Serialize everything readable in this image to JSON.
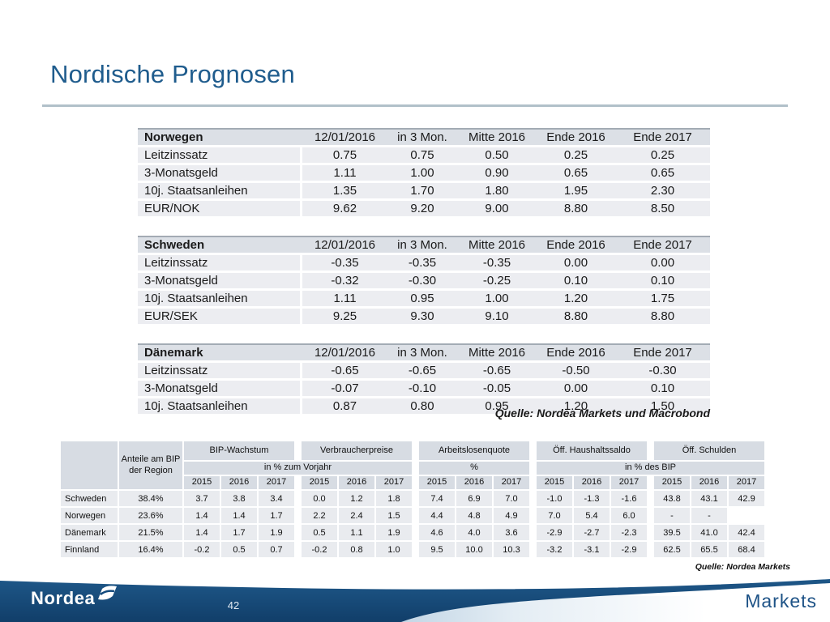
{
  "slide": {
    "title": "Nordische Prognosen",
    "source_top": "Quelle: Nordea Markets und Macrobond",
    "source_bottom": "Quelle: Nordea Markets",
    "page_number": "42",
    "footer_brand": "Nordea",
    "footer_right": "Markets"
  },
  "forecast_tables": [
    {
      "title": "Norwegen",
      "columns": [
        "12/01/2016",
        "in 3 Mon.",
        "Mitte 2016",
        "Ende 2016",
        "Ende 2017"
      ],
      "rows": [
        {
          "label": "Leitzinssatz",
          "values": [
            "0.75",
            "0.75",
            "0.50",
            "0.25",
            "0.25"
          ]
        },
        {
          "label": "3-Monatsgeld",
          "values": [
            "1.11",
            "1.00",
            "0.90",
            "0.65",
            "0.65"
          ]
        },
        {
          "label": "10j. Staatsanleihen",
          "values": [
            "1.35",
            "1.70",
            "1.80",
            "1.95",
            "2.30"
          ]
        },
        {
          "label": "EUR/NOK",
          "values": [
            "9.62",
            "9.20",
            "9.00",
            "8.80",
            "8.50"
          ]
        }
      ]
    },
    {
      "title": "Schweden",
      "columns": [
        "12/01/2016",
        "in 3 Mon.",
        "Mitte 2016",
        "Ende 2016",
        "Ende 2017"
      ],
      "rows": [
        {
          "label": "Leitzinssatz",
          "values": [
            "-0.35",
            "-0.35",
            "-0.35",
            "0.00",
            "0.00"
          ]
        },
        {
          "label": "3-Monatsgeld",
          "values": [
            "-0.32",
            "-0.30",
            "-0.25",
            "0.10",
            "0.10"
          ]
        },
        {
          "label": "10j. Staatsanleihen",
          "values": [
            "1.11",
            "0.95",
            "1.00",
            "1.20",
            "1.75"
          ]
        },
        {
          "label": "EUR/SEK",
          "values": [
            "9.25",
            "9.30",
            "9.10",
            "8.80",
            "8.80"
          ]
        }
      ]
    },
    {
      "title": "Dänemark",
      "columns": [
        "12/01/2016",
        "in 3 Mon.",
        "Mitte 2016",
        "Ende 2016",
        "Ende 2017"
      ],
      "rows": [
        {
          "label": "Leitzinssatz",
          "values": [
            "-0.65",
            "-0.65",
            "-0.65",
            "-0.50",
            "-0.30"
          ]
        },
        {
          "label": "3-Monatsgeld",
          "values": [
            "-0.07",
            "-0.10",
            "-0.05",
            "0.00",
            "0.10"
          ]
        },
        {
          "label": "10j. Staatsanleihen",
          "values": [
            "0.87",
            "0.80",
            "0.95",
            "1.20",
            "1.50"
          ]
        }
      ]
    }
  ],
  "summary_table": {
    "share_header": "Anteile am BIP der Region",
    "groups": [
      "BIP-Wachstum",
      "Verbraucherpreise",
      "Arbeitslosenquote",
      "Öff. Haushaltssaldo",
      "Öff. Schulden"
    ],
    "subheaders": [
      {
        "label": "in % zum Vorjahr",
        "span_groups": 2
      },
      {
        "label": "%",
        "span_groups": 1
      },
      {
        "label": "in % des BIP",
        "span_groups": 2
      }
    ],
    "years": [
      "2015",
      "2016",
      "2017"
    ],
    "rows": [
      {
        "label": "Schweden",
        "share": "38.4%",
        "values": [
          [
            "3.7",
            "3.8",
            "3.4"
          ],
          [
            "0.0",
            "1.2",
            "1.8"
          ],
          [
            "7.4",
            "6.9",
            "7.0"
          ],
          [
            "-1.0",
            "-1.3",
            "-1.6"
          ],
          [
            "43.8",
            "43.1",
            "42.9"
          ]
        ]
      },
      {
        "label": "Norwegen",
        "share": "23.6%",
        "values": [
          [
            "1.4",
            "1.4",
            "1.7"
          ],
          [
            "2.2",
            "2.4",
            "1.5"
          ],
          [
            "4.4",
            "4.8",
            "4.9"
          ],
          [
            "7.0",
            "5.4",
            "6.0"
          ],
          [
            "-",
            "-",
            null
          ]
        ]
      },
      {
        "label": "Dänemark",
        "share": "21.5%",
        "values": [
          [
            "1.4",
            "1.7",
            "1.9"
          ],
          [
            "0.5",
            "1.1",
            "1.9"
          ],
          [
            "4.6",
            "4.0",
            "3.6"
          ],
          [
            "-2.9",
            "-2.7",
            "-2.3"
          ],
          [
            "39.5",
            "41.0",
            "42.4"
          ]
        ]
      },
      {
        "label": "Finnland",
        "share": "16.4%",
        "values": [
          [
            "-0.2",
            "0.5",
            "0.7"
          ],
          [
            "-0.2",
            "0.8",
            "1.0"
          ],
          [
            "9.5",
            "10.0",
            "10.3"
          ],
          [
            "-3.2",
            "-3.1",
            "-2.9"
          ],
          [
            "62.5",
            "65.5",
            "68.4"
          ]
        ]
      }
    ]
  },
  "colors": {
    "title_blue": "#1f5c8d",
    "rule_gray": "#b1c0c9",
    "table_header_bg": "#dce0e6",
    "table_row_bg": "#ecedf1",
    "summary_header_bg": "#d7dce3",
    "summary_row_bg": "#e9ebef",
    "footer_dark_blue": "#16497a",
    "footer_light_blue": "#9dbdd6",
    "markets_text_blue": "#1d5286"
  }
}
